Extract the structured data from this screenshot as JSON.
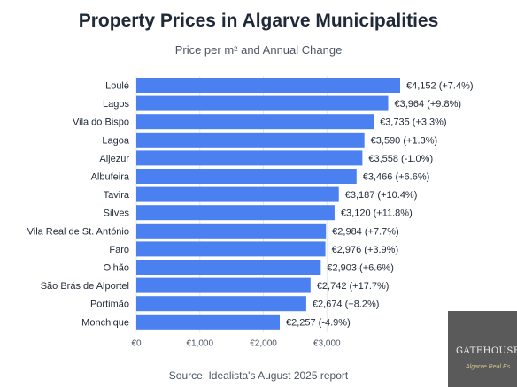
{
  "header": {
    "title": "Property Prices in Algarve Municipalities",
    "subtitle": "Price per m² and Annual Change"
  },
  "footer": {
    "source": "Source: Idealista's August 2025 report"
  },
  "watermark": {
    "main": "GATEHOUSE INT",
    "sub": "Algarve Real Es"
  },
  "colors": {
    "bar": "#4a80f0",
    "gridline": "#e5e7eb"
  },
  "chart_data": {
    "type": "bar",
    "orientation": "horizontal",
    "title": "Property Prices in Algarve Municipalities",
    "subtitle": "Price per m² and Annual Change",
    "categories": [
      "Loulé",
      "Lagos",
      "Vila do Bispo",
      "Lagoa",
      "Aljezur",
      "Albufeira",
      "Tavira",
      "Silves",
      "Vila Real de St. António",
      "Faro",
      "Olhão",
      "São Brás de Alportel",
      "Portimão",
      "Monchique"
    ],
    "values": [
      4152,
      3964,
      3735,
      3590,
      3558,
      3466,
      3187,
      3120,
      2984,
      2976,
      2903,
      2742,
      2674,
      2257
    ],
    "value_labels": [
      "€4,152 (+7.4%)",
      "€3,964 (+9.8%)",
      "€3,735 (+3.3%)",
      "€3,590 (+1.3%)",
      "€3,558 (-1.0%)",
      "€3,466 (+6.6%)",
      "€3,187 (+10.4%)",
      "€3,120 (+11.8%)",
      "€2,984 (+7.7%)",
      "€2,976 (+3.9%)",
      "€2,903 (+6.6%)",
      "€2,742 (+17.7%)",
      "€2,674 (+8.2%)",
      "€2,257 (-4.9%)"
    ],
    "annual_change_pct": [
      7.4,
      9.8,
      3.3,
      1.3,
      -1.0,
      6.6,
      10.4,
      11.8,
      7.7,
      3.9,
      6.6,
      17.7,
      8.2,
      -4.9
    ],
    "xticks": [
      0,
      1000,
      2000,
      3000
    ],
    "xtick_labels": [
      "€0",
      "€1,000",
      "€2,000",
      "€3,000"
    ],
    "xlim": [
      0,
      4152
    ],
    "xlabel": "",
    "ylabel": "",
    "grid": true,
    "legend": "none"
  }
}
